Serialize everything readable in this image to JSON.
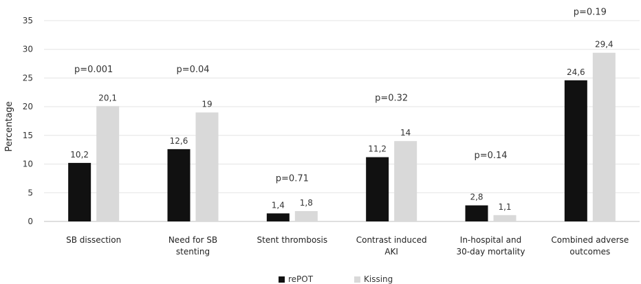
{
  "chart_data": {
    "type": "bar",
    "ylabel": "Percentage",
    "xlabel": "",
    "ylim": [
      0,
      35
    ],
    "yticks": [
      0,
      5,
      10,
      15,
      20,
      25,
      30,
      35
    ],
    "grid": true,
    "legend_position": "bottom",
    "categories": [
      [
        "SB dissection"
      ],
      [
        "Need for SB",
        "stenting"
      ],
      [
        "Stent thrombosis"
      ],
      [
        "Contrast induced",
        "AKI"
      ],
      [
        "In-hospital and",
        "30-day mortality"
      ],
      [
        "Combined adverse",
        "outcomes"
      ]
    ],
    "series": [
      {
        "name": "rePOT",
        "color": "#111111",
        "values": [
          10.2,
          12.6,
          1.4,
          11.2,
          2.8,
          24.6
        ],
        "labels": [
          "10,2",
          "12,6",
          "1,4",
          "11,2",
          "2,8",
          "24,6"
        ]
      },
      {
        "name": "Kissing",
        "color": "#d9d9d9",
        "values": [
          20.1,
          19,
          1.8,
          14,
          1.1,
          29.4
        ],
        "labels": [
          "20,1",
          "19",
          "1,8",
          "14",
          "1,1",
          "29,4"
        ]
      }
    ],
    "pvalues": [
      "p=0.001",
      "p=0.04",
      "p=0.71",
      "p=0.32",
      "p=0.14",
      "p=0.19"
    ],
    "pvalue_levels": [
      26.5,
      26.5,
      7.5,
      21.5,
      11.5,
      36.5
    ]
  }
}
